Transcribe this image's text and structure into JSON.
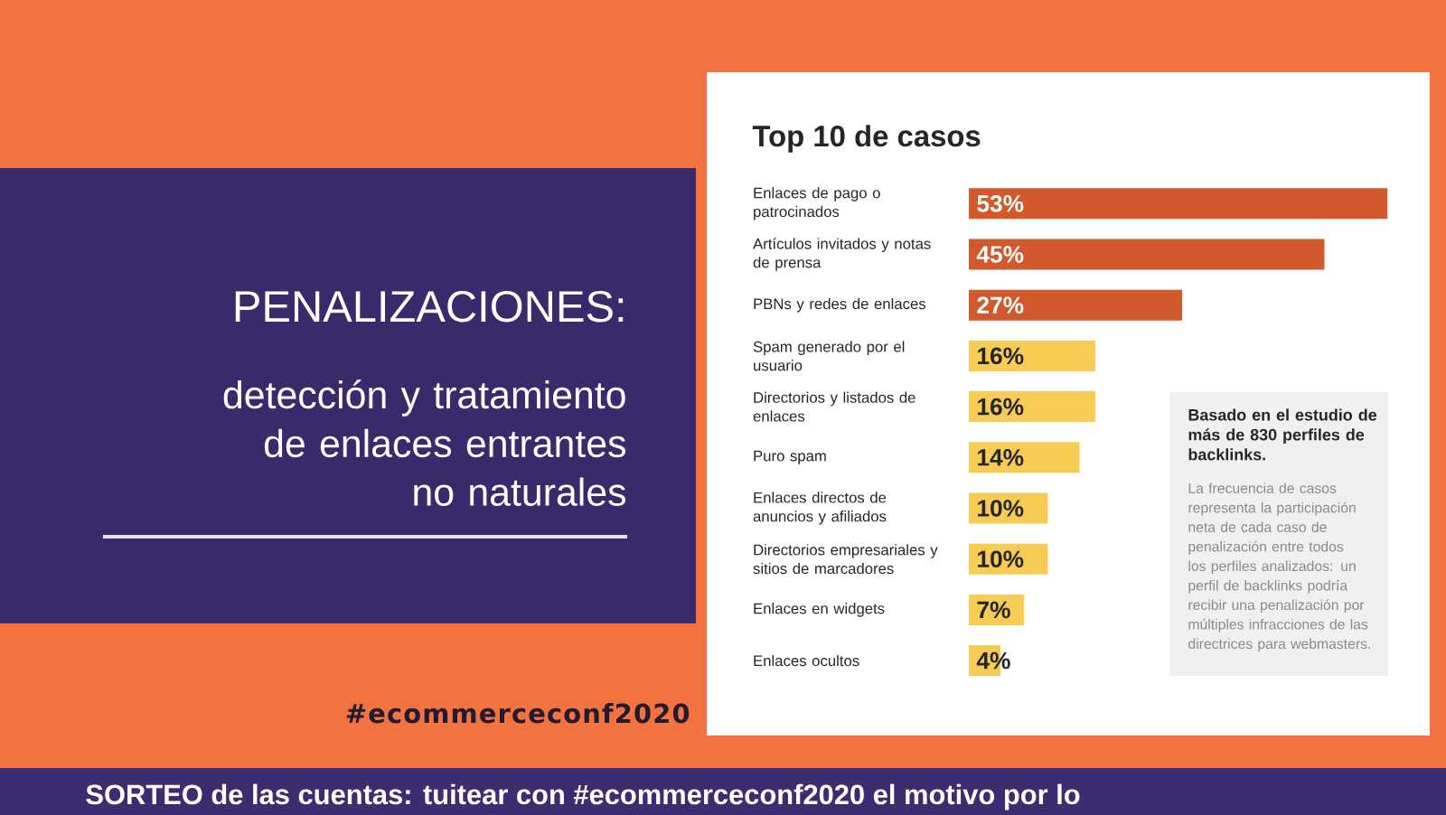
{
  "chart_data": {
    "type": "bar",
    "orientation": "horizontal",
    "title": "Top 10 de casos",
    "categories": [
      "Enlaces de pago o patrocinados",
      "Artículos invitados y notas de prensa",
      "PBNs y redes de enlaces",
      "Spam generado por el usuario",
      "Directorios y listados de enlaces",
      "Puro spam",
      "Enlaces directos de anuncios y afiliados",
      "Directorios empresariales y sitios de marcadores",
      "Enlaces en widgets",
      "Enlaces ocultos"
    ],
    "values": [
      53,
      45,
      27,
      16,
      16,
      14,
      10,
      10,
      7,
      4
    ],
    "colors": [
      "#d2592c",
      "#d2592c",
      "#d2592c",
      "#f6cc55",
      "#f6cc55",
      "#f6cc55",
      "#f6cc55",
      "#f6cc55",
      "#f6cc55",
      "#f6cc55"
    ],
    "value_labels": [
      "53%",
      "45%",
      "27%",
      "16%",
      "16%",
      "14%",
      "10%",
      "10%",
      "7%",
      "4%"
    ],
    "tick_labels": "y",
    "annotations": [
      "PENALIZACIONES:",
      "detección y tratamiento de enlaces entrantes no naturales",
      "Basado en el estudio de más de 830 perfiles de backlinks.",
      "La frecuencia de casos representa la participación neta de cada caso de penalización entre todos los perfiles analizados: un perfil de backlinks podría recibir una penalización por múltiples infracciones de las directrices para webmasters.",
      "#ecommerceconf2020",
      "SORTEO de las cuentas: tuitear con #ecommerceconf2020 el motivo por lo"
    ]
  }
}
